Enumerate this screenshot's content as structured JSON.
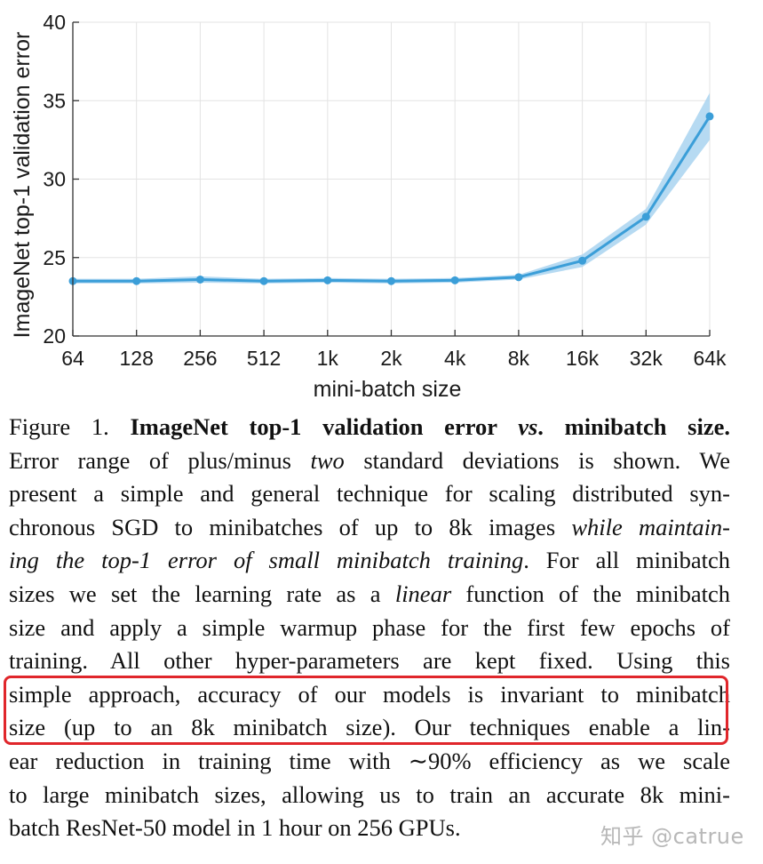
{
  "chart_data": {
    "type": "line",
    "categories": [
      "64",
      "128",
      "256",
      "512",
      "1k",
      "2k",
      "4k",
      "8k",
      "16k",
      "32k",
      "64k"
    ],
    "series": [
      {
        "values": [
          23.5,
          23.5,
          23.6,
          23.5,
          23.55,
          23.5,
          23.55,
          23.75,
          24.8,
          27.6,
          34.0
        ],
        "lower": [
          23.35,
          23.35,
          23.4,
          23.35,
          23.4,
          23.35,
          23.4,
          23.6,
          24.4,
          27.1,
          32.5
        ],
        "upper": [
          23.65,
          23.65,
          23.8,
          23.65,
          23.7,
          23.65,
          23.7,
          23.9,
          25.2,
          28.1,
          35.5
        ]
      }
    ],
    "title": "",
    "xlabel": "mini-batch size",
    "ylabel": "ImageNet top-1 validation error",
    "ylim": [
      20,
      40
    ],
    "yticks": [
      20,
      25,
      30,
      35,
      40
    ],
    "grid": true,
    "legend": "none",
    "colors": {
      "line": "#3b9ed8",
      "band": "#a9d3f0",
      "grid": "#e3e3e3",
      "axis": "#333333"
    }
  },
  "caption": {
    "lines": [
      [
        {
          "t": "Figure 1. "
        },
        {
          "t": "ImageNet top-1 validation error ",
          "b": true
        },
        {
          "t": "vs",
          "b": true,
          "i": true
        },
        {
          "t": ". minibatch size.",
          "b": true
        }
      ],
      [
        {
          "t": "Error range of plus/minus "
        },
        {
          "t": "two",
          "i": true
        },
        {
          "t": " standard deviations is shown.  We"
        }
      ],
      [
        {
          "t": "present a simple and general technique for scaling distributed syn-"
        }
      ],
      [
        {
          "t": "chronous SGD to minibatches of up to 8k images "
        },
        {
          "t": "while maintain-",
          "i": true
        }
      ],
      [
        {
          "t": "ing the top-1 error of small minibatch training",
          "i": true
        },
        {
          "t": ". For all minibatch"
        }
      ],
      [
        {
          "t": "sizes we set the learning rate as a "
        },
        {
          "t": "linear",
          "i": true
        },
        {
          "t": " function of the minibatch"
        }
      ],
      [
        {
          "t": "size and apply a simple warmup phase for the first few epochs of"
        }
      ],
      [
        {
          "t": "training.  All other hyper-parameters are kept fixed.  Using this"
        }
      ],
      [
        {
          "t": "simple approach, accuracy of our models is invariant to minibatch"
        }
      ],
      [
        {
          "t": "size (up to an 8k minibatch size).  Our techniques enable a lin-"
        }
      ],
      [
        {
          "t": "ear reduction in training time with ∼90% efficiency as we scale"
        }
      ],
      [
        {
          "t": "to large minibatch sizes, allowing us to train an accurate 8k mini-"
        }
      ],
      [
        {
          "t": "batch ResNet-50 model in 1 hour on 256 GPUs."
        }
      ]
    ]
  },
  "watermark": "知乎 @catrue"
}
